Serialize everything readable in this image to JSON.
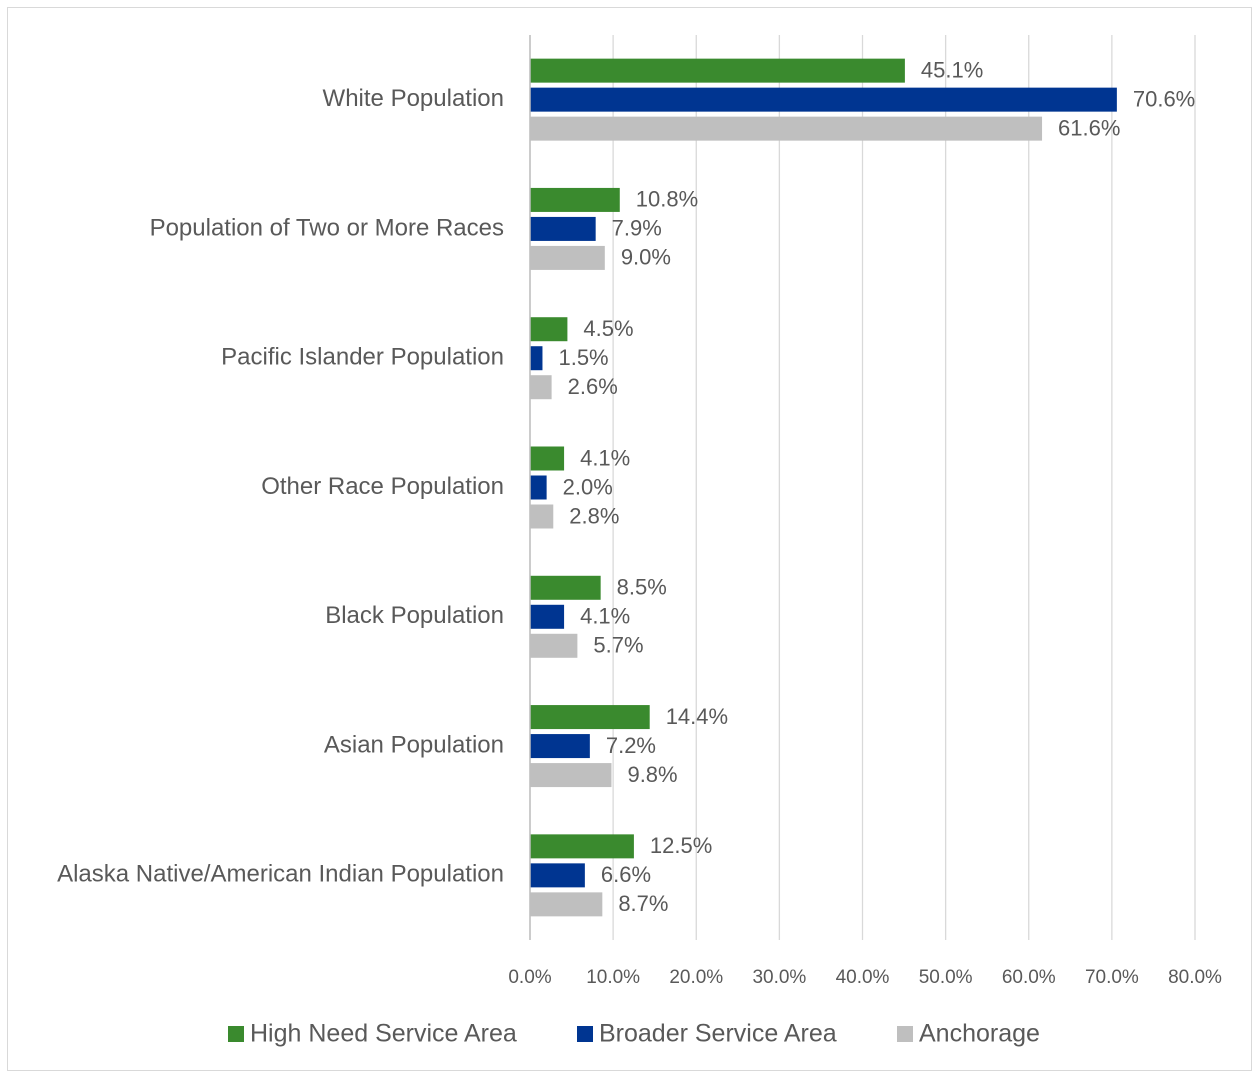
{
  "chart_data": {
    "type": "bar",
    "orientation": "horizontal",
    "categories": [
      "White Population",
      "Population of Two or More Races",
      "Pacific Islander Population",
      "Other Race Population",
      "Black Population",
      "Asian Population",
      "Alaska Native/American Indian Population"
    ],
    "series": [
      {
        "name": "High Need Service Area",
        "color": "#3a8a2e",
        "values": [
          45.1,
          10.8,
          4.5,
          4.1,
          8.5,
          14.4,
          12.5
        ],
        "value_labels": [
          "45.1%",
          "10.8%",
          "4.5%",
          "4.1%",
          "8.5%",
          "14.4%",
          "12.5%"
        ]
      },
      {
        "name": "Broader Service Area",
        "color": "#003591",
        "values": [
          70.6,
          7.9,
          1.5,
          2.0,
          4.1,
          7.2,
          6.6
        ],
        "value_labels": [
          "70.6%",
          "7.9%",
          "1.5%",
          "2.0%",
          "4.1%",
          "7.2%",
          "6.6%"
        ]
      },
      {
        "name": "Anchorage",
        "color": "#bfbfbf",
        "values": [
          61.6,
          9.0,
          2.6,
          2.8,
          5.7,
          9.8,
          8.7
        ],
        "value_labels": [
          "61.6%",
          "9.0%",
          "2.6%",
          "2.8%",
          "5.7%",
          "9.8%",
          "8.7%"
        ]
      }
    ],
    "xlim": [
      0,
      80
    ],
    "xticks": [
      {
        "value": 0,
        "label": "0.0%"
      },
      {
        "value": 10,
        "label": "10.0%"
      },
      {
        "value": 20,
        "label": "20.0%"
      },
      {
        "value": 30,
        "label": "30.0%"
      },
      {
        "value": 40,
        "label": "40.0%"
      },
      {
        "value": 50,
        "label": "50.0%"
      },
      {
        "value": 60,
        "label": "60.0%"
      },
      {
        "value": 70,
        "label": "70.0%"
      },
      {
        "value": 80,
        "label": "80.0%"
      }
    ],
    "grid": true,
    "legend": "bottom"
  }
}
